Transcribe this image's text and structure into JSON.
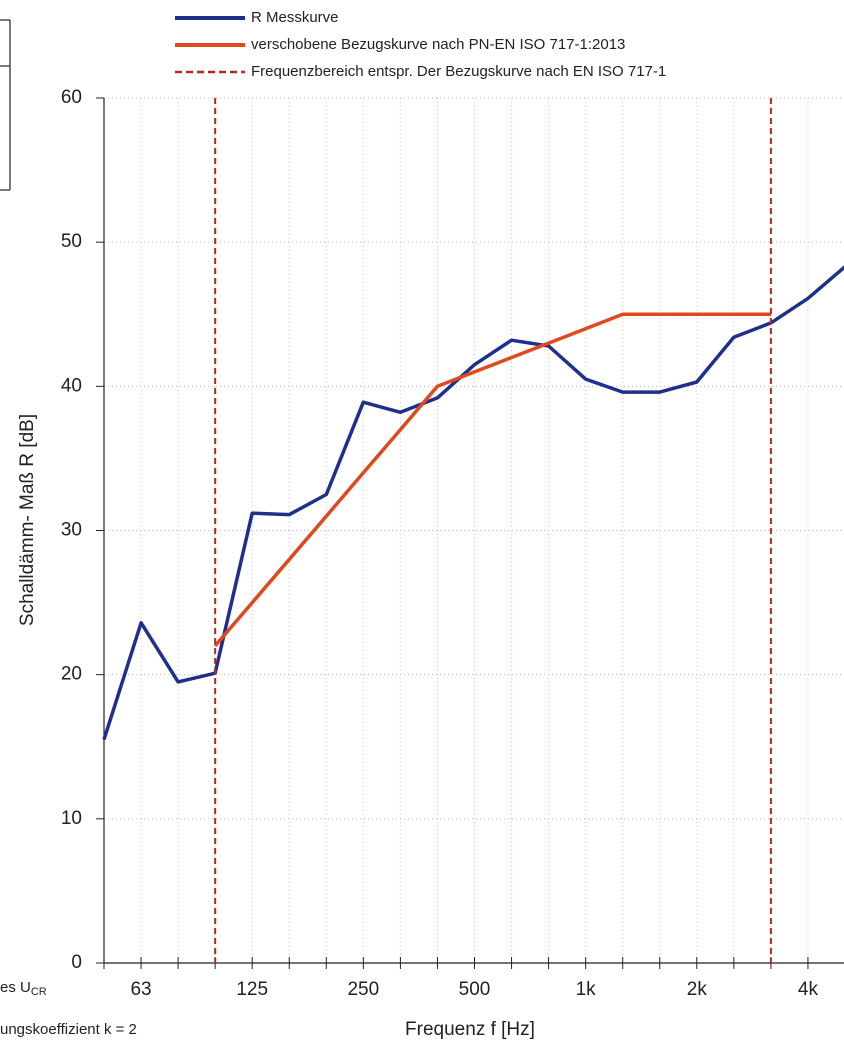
{
  "chart_data": {
    "type": "line",
    "ylabel": "Schalldämm- Maß R [dB]",
    "xlabel": "Frequenz f  [Hz]",
    "categories": [
      null,
      "63",
      null,
      null,
      "125",
      null,
      null,
      "250",
      null,
      null,
      "500",
      null,
      null,
      "1k",
      null,
      null,
      "2k",
      null,
      null,
      "4k",
      null
    ],
    "series": [
      {
        "name": "R Messkurve",
        "color": "#1f2f8c",
        "values": [
          15.5,
          23.6,
          19.5,
          20.1,
          31.2,
          31.1,
          32.5,
          38.9,
          38.2,
          39.2,
          41.5,
          43.2,
          42.8,
          40.5,
          39.6,
          39.6,
          40.3,
          43.4,
          44.4,
          46.1,
          48.3
        ]
      },
      {
        "name": "verschobene Bezugskurve nach PN-EN ISO 717-1:2013",
        "color": "#e0481e",
        "values": [
          null,
          null,
          null,
          22,
          25,
          28,
          31,
          34,
          37,
          40,
          41,
          42,
          43,
          44,
          45,
          45,
          45,
          45,
          45,
          null,
          null
        ]
      },
      {
        "name": "Frequenzbereich entspr. Der Bezugskurve nach EN ISO 717-1",
        "color": "#b02a22",
        "dashed": true,
        "x": [
          3,
          18
        ]
      }
    ],
    "ylim": [
      0,
      60
    ],
    "yticks": [
      0,
      10,
      20,
      30,
      40,
      50,
      60
    ],
    "grid": true
  },
  "fragments": {
    "note1": "es U",
    "note1_sub": "CR",
    "note2": "ungskoeffizient k = 2"
  }
}
